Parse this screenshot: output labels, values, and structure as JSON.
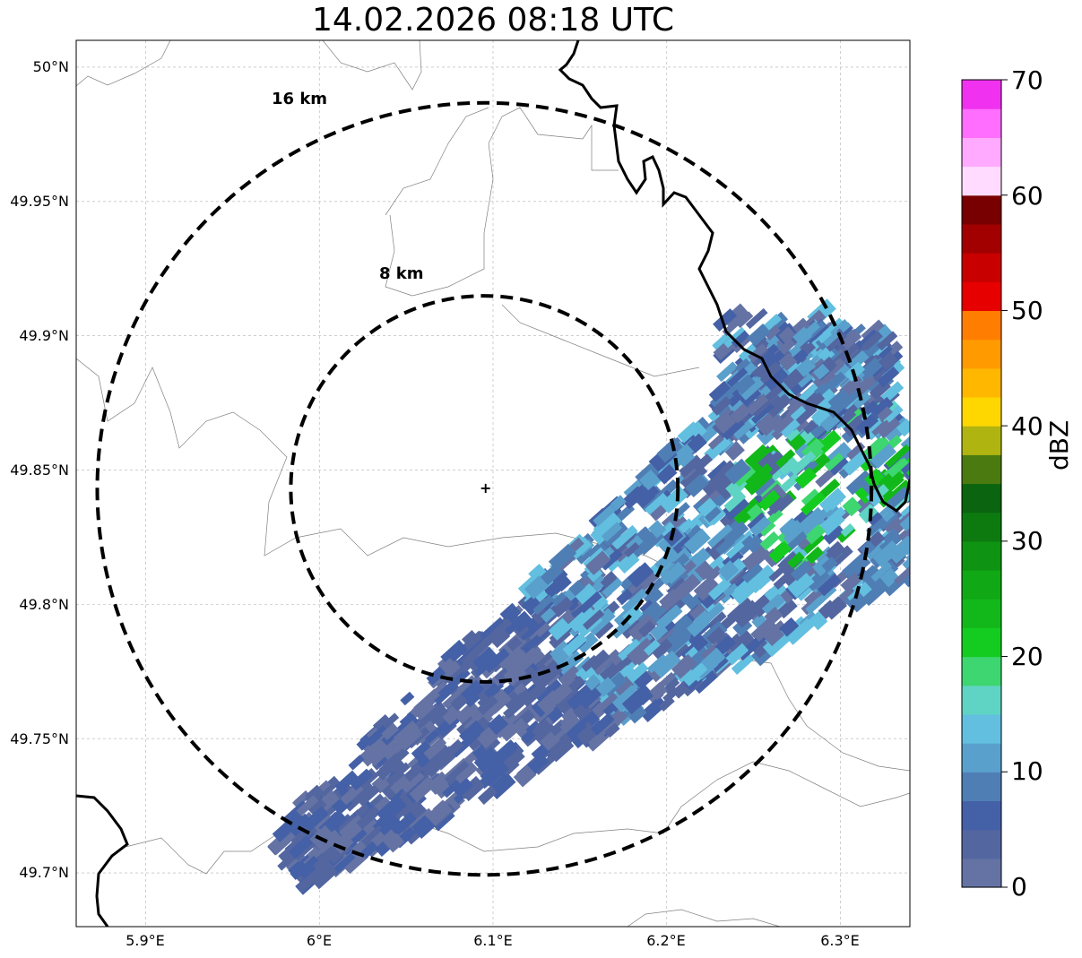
{
  "title": "14.02.2026 08:18 UTC",
  "map": {
    "lat_range": [
      49.68,
      50.01
    ],
    "lon_range": [
      5.86,
      6.34
    ],
    "radar_site": {
      "lon": 6.095,
      "lat": 49.843
    },
    "lat_ticks": [
      {
        "value": 50.0,
        "label": "50°N"
      },
      {
        "value": 49.95,
        "label": "49.95°N"
      },
      {
        "value": 49.9,
        "label": "49.9°N"
      },
      {
        "value": 49.85,
        "label": "49.85°N"
      },
      {
        "value": 49.8,
        "label": "49.8°N"
      },
      {
        "value": 49.75,
        "label": "49.75°N"
      },
      {
        "value": 49.7,
        "label": "49.7°N"
      }
    ],
    "lon_ticks": [
      {
        "value": 5.9,
        "label": "5.9°E"
      },
      {
        "value": 6.0,
        "label": "6°E"
      },
      {
        "value": 6.1,
        "label": "6.1°E"
      },
      {
        "value": 6.2,
        "label": "6.2°E"
      },
      {
        "value": 6.3,
        "label": "6.3°E"
      }
    ],
    "range_rings": [
      {
        "radius_km": 8,
        "label": "8 km"
      },
      {
        "radius_km": 16,
        "label": "16 km"
      }
    ]
  },
  "colorbar": {
    "label": "dBZ",
    "min": 0,
    "max": 70,
    "ticks": [
      {
        "value": 70,
        "label": "70"
      },
      {
        "value": 60,
        "label": "60"
      },
      {
        "value": 50,
        "label": "50"
      },
      {
        "value": 40,
        "label": "40"
      },
      {
        "value": 30,
        "label": "30"
      },
      {
        "value": 20,
        "label": "20"
      },
      {
        "value": 10,
        "label": "10"
      },
      {
        "value": 0,
        "label": "0"
      }
    ],
    "colors": [
      "#6473a4",
      "#5366a0",
      "#4460a6",
      "#4f7eb5",
      "#5aa0cc",
      "#62bfdf",
      "#5fd4c4",
      "#3ed670",
      "#14cc20",
      "#12b81a",
      "#10a814",
      "#0f9312",
      "#0d7a10",
      "#0a6410",
      "#4a7a10",
      "#b0b410",
      "#ffd700",
      "#ffb700",
      "#ff9a00",
      "#ff7d00",
      "#e60000",
      "#c80000",
      "#a20000",
      "#780000",
      "#ffdcff",
      "#ffaaff",
      "#ff6eff",
      "#f032f0"
    ]
  }
}
